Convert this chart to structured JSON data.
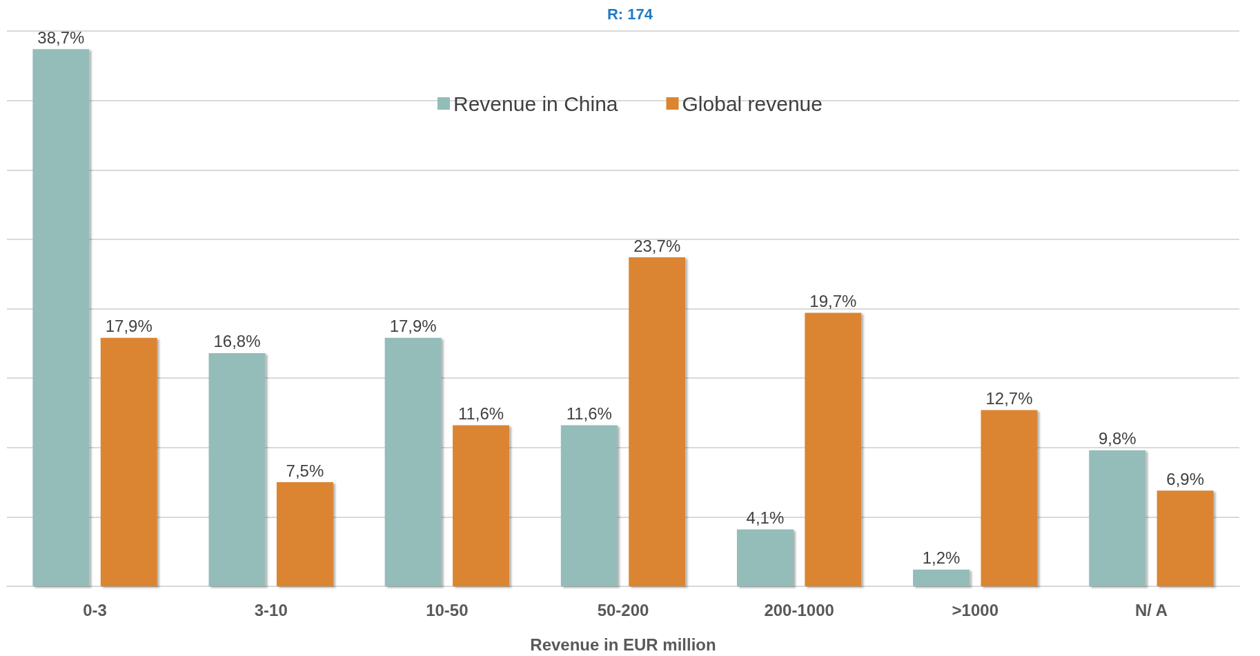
{
  "chart_data": {
    "type": "bar",
    "title": "R: 174",
    "xlabel": "Revenue in EUR million",
    "categories": [
      "0-3",
      "3-10",
      "10-50",
      "50-200",
      "200-1000",
      ">1000",
      "N/ A"
    ],
    "series": [
      {
        "name": "Revenue in China",
        "color": "#94bcb9",
        "values": [
          38.7,
          16.8,
          17.9,
          11.6,
          4.1,
          1.2,
          9.8
        ],
        "value_labels": [
          "38,7%",
          "16,8%",
          "17,9%",
          "11,6%",
          "4,1%",
          "1,2%",
          "9,8%"
        ]
      },
      {
        "name": "Global revenue",
        "color": "#db8530",
        "values": [
          17.9,
          7.5,
          11.6,
          23.7,
          19.7,
          12.7,
          6.9
        ],
        "value_labels": [
          "17,9%",
          "7,5%",
          "11,6%",
          "23,7%",
          "19,7%",
          "12,7%",
          "6,9%"
        ]
      }
    ],
    "ylim": [
      0,
      40
    ],
    "yticks": [
      {
        "value": 0,
        "label": null
      },
      {
        "value": 5,
        "label": null
      },
      {
        "value": 10,
        "label": null
      },
      {
        "value": 15,
        "label": null
      },
      {
        "value": 20,
        "label": null
      },
      {
        "value": 25,
        "label": null
      },
      {
        "value": 30,
        "label": null
      },
      {
        "value": 35,
        "label": null
      },
      {
        "value": 40,
        "label": null
      }
    ],
    "grid": "y",
    "legend": "top",
    "tick_labels": "x"
  }
}
